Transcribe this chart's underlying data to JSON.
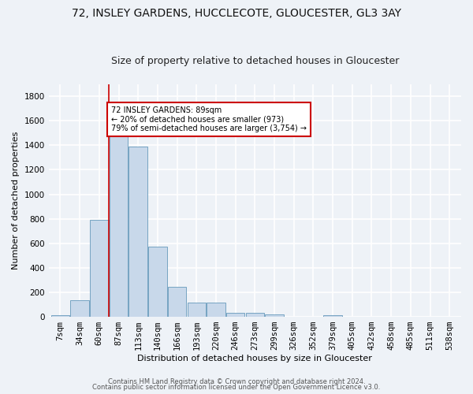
{
  "title1": "72, INSLEY GARDENS, HUCCLECOTE, GLOUCESTER, GL3 3AY",
  "title2": "Size of property relative to detached houses in Gloucester",
  "xlabel": "Distribution of detached houses by size in Gloucester",
  "ylabel": "Number of detached properties",
  "bin_labels": [
    "7sqm",
    "34sqm",
    "60sqm",
    "87sqm",
    "113sqm",
    "140sqm",
    "166sqm",
    "193sqm",
    "220sqm",
    "246sqm",
    "273sqm",
    "299sqm",
    "326sqm",
    "352sqm",
    "379sqm",
    "405sqm",
    "432sqm",
    "458sqm",
    "485sqm",
    "511sqm",
    "538sqm"
  ],
  "bar_values": [
    15,
    135,
    790,
    1490,
    1390,
    575,
    245,
    115,
    115,
    30,
    30,
    20,
    0,
    0,
    15,
    0,
    0,
    0,
    0,
    0,
    0
  ],
  "bar_color": "#c8d8ea",
  "bar_edge_color": "#6699bb",
  "vline_x": 3,
  "annotation_text": "72 INSLEY GARDENS: 89sqm\n← 20% of detached houses are smaller (973)\n79% of semi-detached houses are larger (3,754) →",
  "annotation_box_color": "#ffffff",
  "annotation_box_edge": "#cc0000",
  "vline_color": "#cc0000",
  "ylim": [
    0,
    1900
  ],
  "yticks": [
    0,
    200,
    400,
    600,
    800,
    1000,
    1200,
    1400,
    1600,
    1800
  ],
  "footer1": "Contains HM Land Registry data © Crown copyright and database right 2024.",
  "footer2": "Contains public sector information licensed under the Open Government Licence v3.0.",
  "bg_color": "#eef2f7",
  "grid_color": "#ffffff",
  "title1_fontsize": 10,
  "title2_fontsize": 9,
  "axis_label_fontsize": 8,
  "tick_fontsize": 7.5,
  "footer_fontsize": 6
}
